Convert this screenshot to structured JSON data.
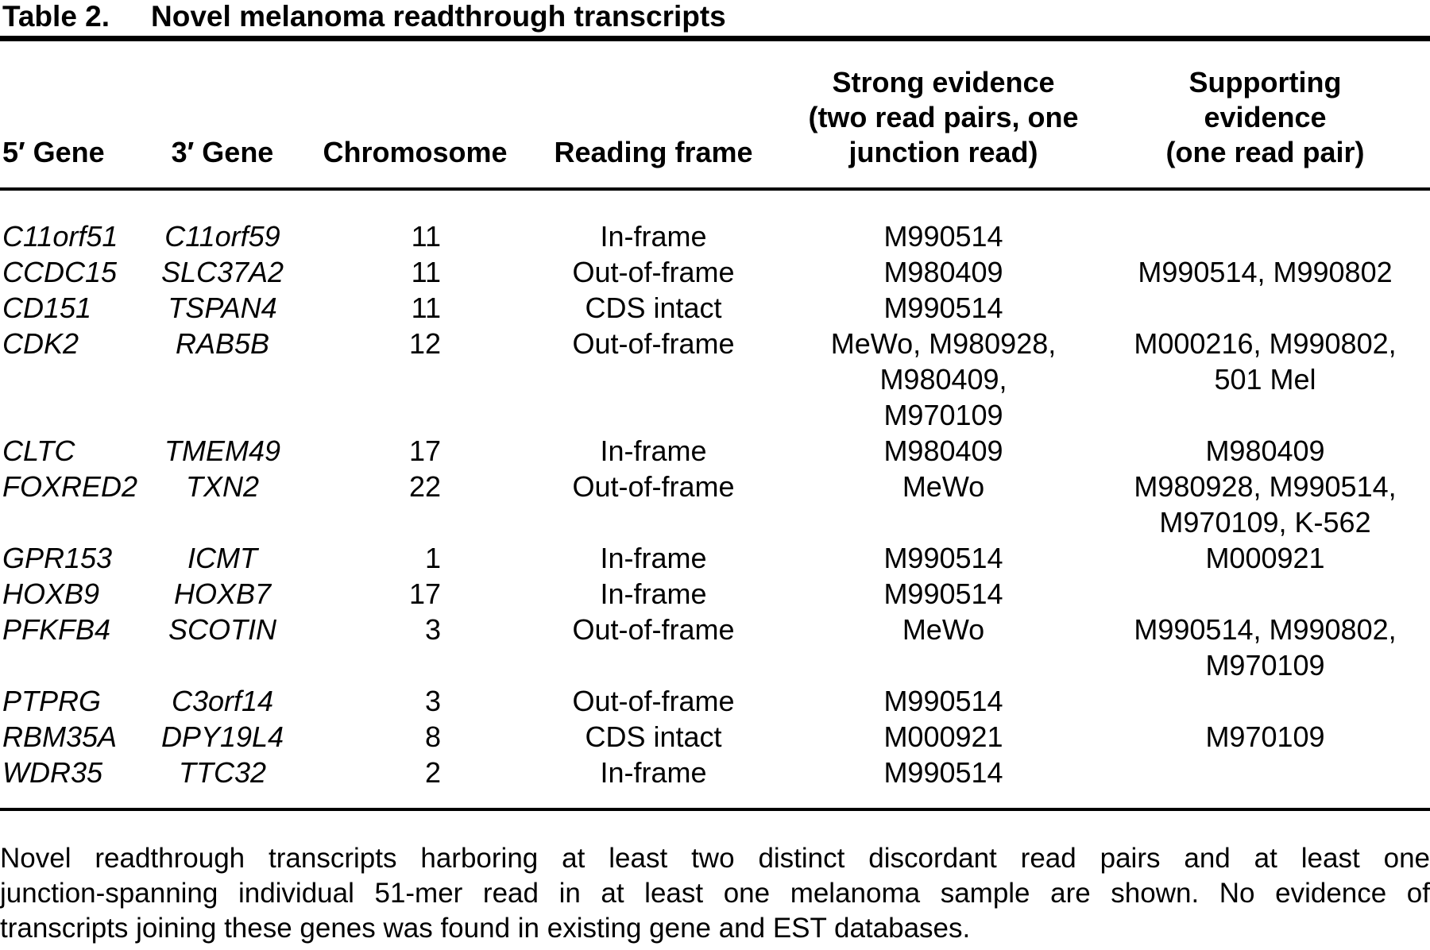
{
  "title": {
    "label": "Table 2.",
    "caption": "Novel melanoma readthrough transcripts"
  },
  "colors": {
    "text": "#000000",
    "background": "#ffffff",
    "rule": "#000000"
  },
  "table": {
    "columns": [
      {
        "key": "gene5",
        "label_lines": [
          "5′ Gene"
        ]
      },
      {
        "key": "gene3",
        "label_lines": [
          "3′ Gene"
        ]
      },
      {
        "key": "chromosome",
        "label_lines": [
          "Chromosome"
        ]
      },
      {
        "key": "frame",
        "label_lines": [
          "Reading frame"
        ]
      },
      {
        "key": "strong",
        "label_lines": [
          "Strong evidence",
          "(two read pairs, one",
          "junction read)"
        ]
      },
      {
        "key": "supporting",
        "label_lines": [
          "Supporting",
          "evidence",
          "(one read pair)"
        ]
      }
    ],
    "rows": [
      {
        "gene5": "C11orf51",
        "gene3": "C11orf59",
        "chromosome": "11",
        "frame": "In-frame",
        "strong": [
          "M990514"
        ],
        "supporting": []
      },
      {
        "gene5": "CCDC15",
        "gene3": "SLC37A2",
        "chromosome": "11",
        "frame": "Out-of-frame",
        "strong": [
          "M980409"
        ],
        "supporting": [
          "M990514, M990802"
        ]
      },
      {
        "gene5": "CD151",
        "gene3": "TSPAN4",
        "chromosome": "11",
        "frame": "CDS intact",
        "strong": [
          "M990514"
        ],
        "supporting": []
      },
      {
        "gene5": "CDK2",
        "gene3": "RAB5B",
        "chromosome": "12",
        "frame": "Out-of-frame",
        "strong": [
          "MeWo, M980928,",
          "M980409,",
          "M970109"
        ],
        "supporting": [
          "M000216, M990802,",
          "501 Mel"
        ]
      },
      {
        "gene5": "CLTC",
        "gene3": "TMEM49",
        "chromosome": "17",
        "frame": "In-frame",
        "strong": [
          "M980409"
        ],
        "supporting": [
          "M980409"
        ]
      },
      {
        "gene5": "FOXRED2",
        "gene3": "TXN2",
        "chromosome": "22",
        "frame": "Out-of-frame",
        "strong": [
          "MeWo"
        ],
        "supporting": [
          "M980928, M990514,",
          "M970109, K-562"
        ]
      },
      {
        "gene5": "GPR153",
        "gene3": "ICMT",
        "chromosome": "1",
        "frame": "In-frame",
        "strong": [
          "M990514"
        ],
        "supporting": [
          "M000921"
        ]
      },
      {
        "gene5": "HOXB9",
        "gene3": "HOXB7",
        "chromosome": "17",
        "frame": "In-frame",
        "strong": [
          "M990514"
        ],
        "supporting": []
      },
      {
        "gene5": "PFKFB4",
        "gene3": "SCOTIN",
        "chromosome": "3",
        "frame": "Out-of-frame",
        "strong": [
          "MeWo"
        ],
        "supporting": [
          "M990514, M990802,",
          "M970109"
        ]
      },
      {
        "gene5": "PTPRG",
        "gene3": "C3orf14",
        "chromosome": "3",
        "frame": "Out-of-frame",
        "strong": [
          "M990514"
        ],
        "supporting": []
      },
      {
        "gene5": "RBM35A",
        "gene3": "DPY19L4",
        "chromosome": "8",
        "frame": "CDS intact",
        "strong": [
          "M000921"
        ],
        "supporting": [
          "M970109"
        ]
      },
      {
        "gene5": "WDR35",
        "gene3": "TTC32",
        "chromosome": "2",
        "frame": "In-frame",
        "strong": [
          "M990514"
        ],
        "supporting": []
      }
    ]
  },
  "footnote": {
    "lines": [
      "Novel readthrough transcripts harboring at least two distinct discordant read pairs and at least one",
      "junction-spanning individual 51-mer read in at least one melanoma sample are shown. No evidence of",
      "transcripts joining these genes was found in existing gene and EST databases."
    ]
  }
}
